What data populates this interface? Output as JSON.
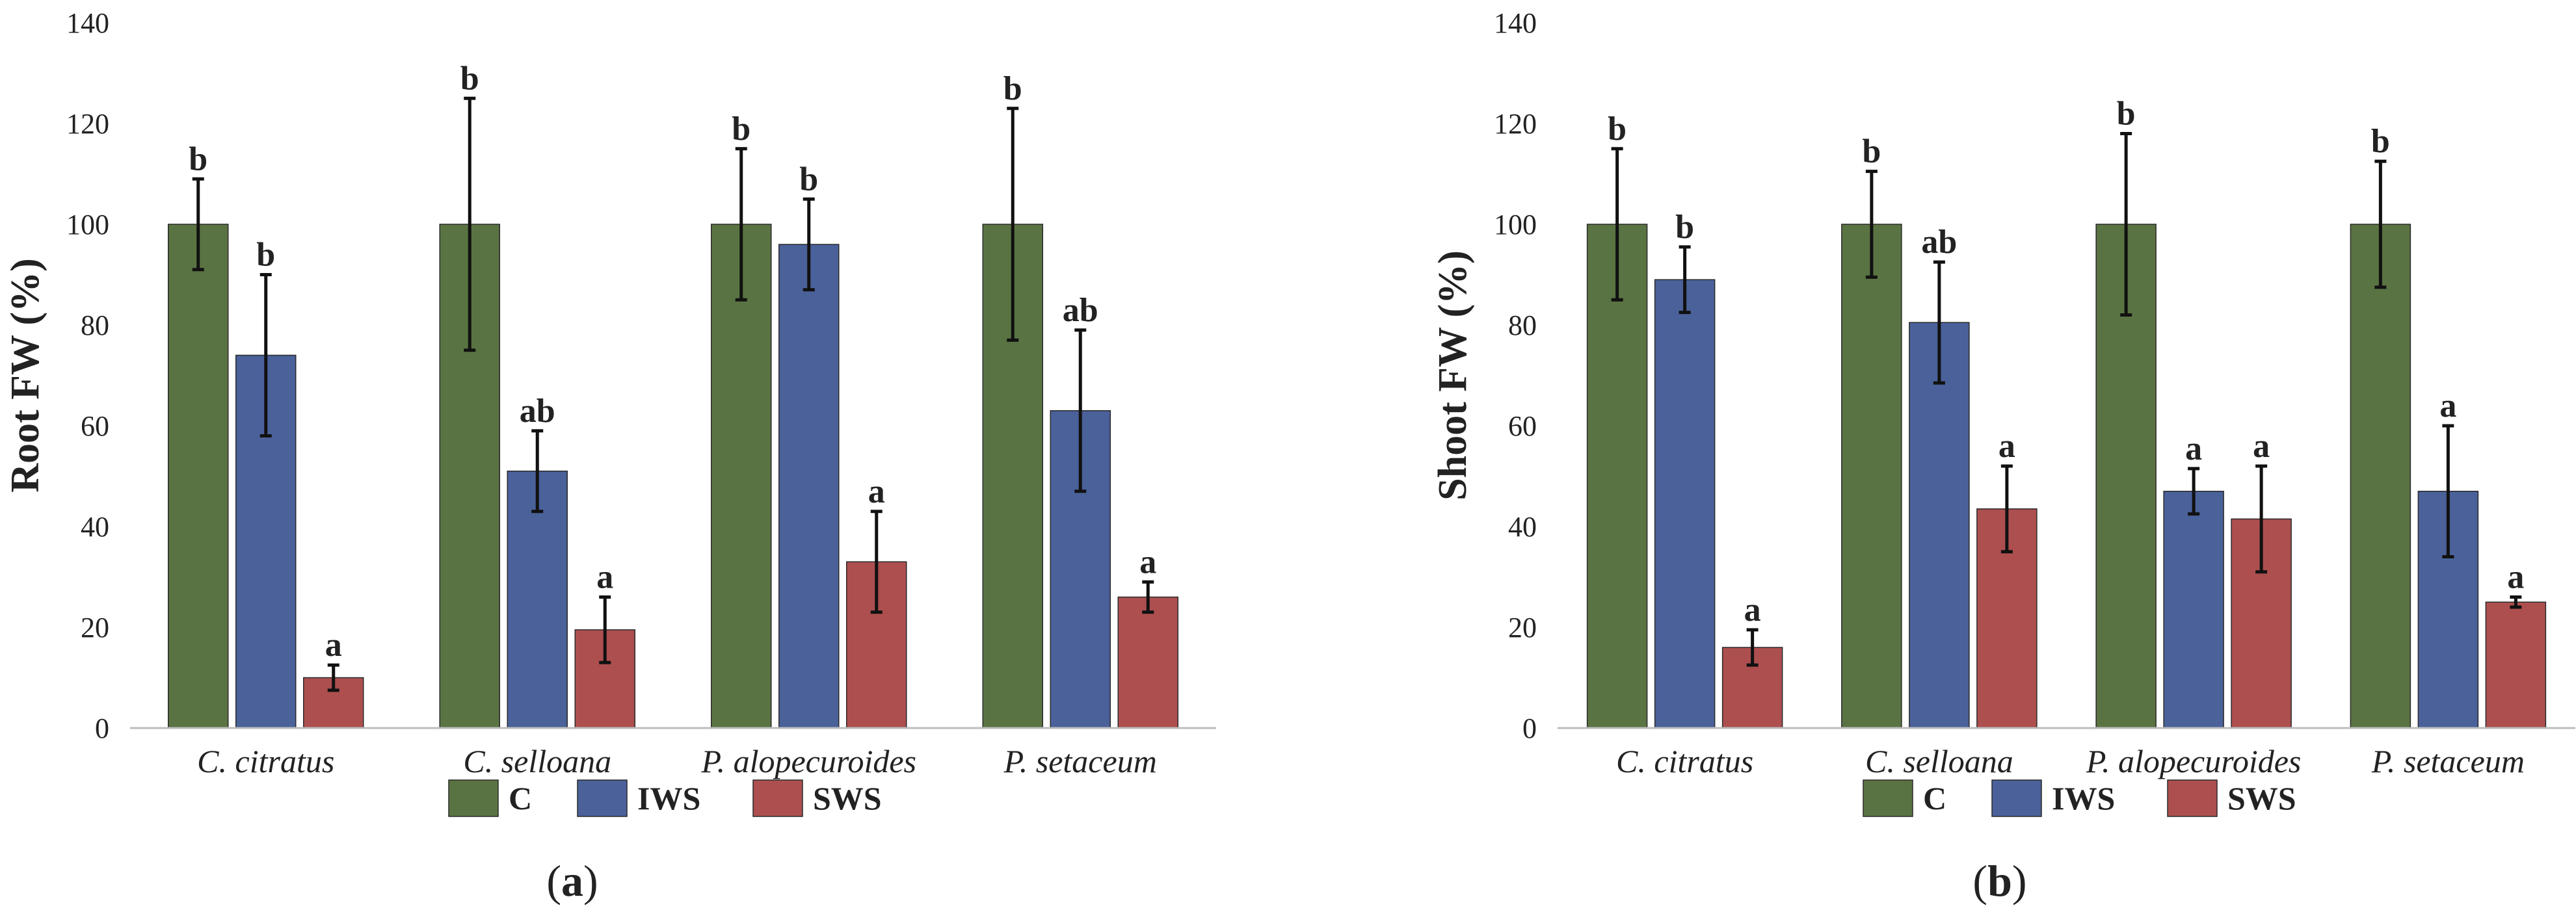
{
  "chart_data": [
    {
      "type": "bar",
      "panel_label": "(a)",
      "ylabel": "Root FW (%)",
      "ylim": [
        0,
        140
      ],
      "yticks": [
        "0",
        "20",
        "40",
        "60",
        "80",
        "100",
        "120",
        "140"
      ],
      "categories": [
        "C. citratus",
        "C. selloana",
        "P. alopecuroides",
        "P. setaceum"
      ],
      "series": [
        {
          "name": "C",
          "color": "#5a7343",
          "values": [
            100,
            100,
            100,
            100
          ],
          "errors": [
            9,
            25,
            15,
            23
          ],
          "letters": [
            "b",
            "b",
            "b",
            "b"
          ]
        },
        {
          "name": "IWS",
          "color": "#4a619a",
          "values": [
            74,
            51,
            96,
            63
          ],
          "errors": [
            16,
            8,
            9,
            16
          ],
          "letters": [
            "b",
            "ab",
            "b",
            "ab"
          ]
        },
        {
          "name": "SWS",
          "color": "#ad4f4f",
          "values": [
            10,
            19.5,
            33,
            26
          ],
          "errors": [
            2.5,
            6.5,
            10,
            3
          ],
          "letters": [
            "a",
            "a",
            "a",
            "a"
          ]
        }
      ]
    },
    {
      "type": "bar",
      "panel_label": "(b)",
      "ylabel": "Shoot FW (%)",
      "ylim": [
        0,
        140
      ],
      "yticks": [
        "0",
        "20",
        "40",
        "60",
        "80",
        "100",
        "120",
        "140"
      ],
      "categories": [
        "C. citratus",
        "C. selloana",
        "P. alopecuroides",
        "P. setaceum"
      ],
      "series": [
        {
          "name": "C",
          "color": "#5a7343",
          "values": [
            100,
            100,
            100,
            100
          ],
          "errors": [
            15,
            10.5,
            18,
            12.5
          ],
          "letters": [
            "b",
            "b",
            "b",
            "b"
          ]
        },
        {
          "name": "IWS",
          "color": "#4a619a",
          "values": [
            89,
            80.5,
            47,
            47
          ],
          "errors": [
            6.5,
            12,
            4.5,
            13
          ],
          "letters": [
            "b",
            "ab",
            "a",
            "a"
          ]
        },
        {
          "name": "SWS",
          "color": "#ad4f4f",
          "values": [
            16,
            43.5,
            41.5,
            25
          ],
          "errors": [
            3.5,
            8.5,
            10.5,
            1
          ],
          "letters": [
            "a",
            "a",
            "a",
            "a"
          ]
        }
      ]
    }
  ]
}
